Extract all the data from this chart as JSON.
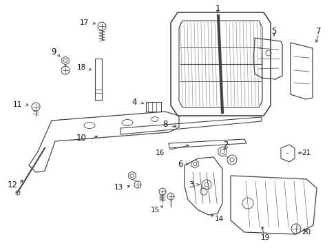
{
  "bg_color": "#ffffff",
  "line_color": "#444444",
  "text_color": "#111111",
  "fig_width": 4.89,
  "fig_height": 3.6,
  "dpi": 100
}
